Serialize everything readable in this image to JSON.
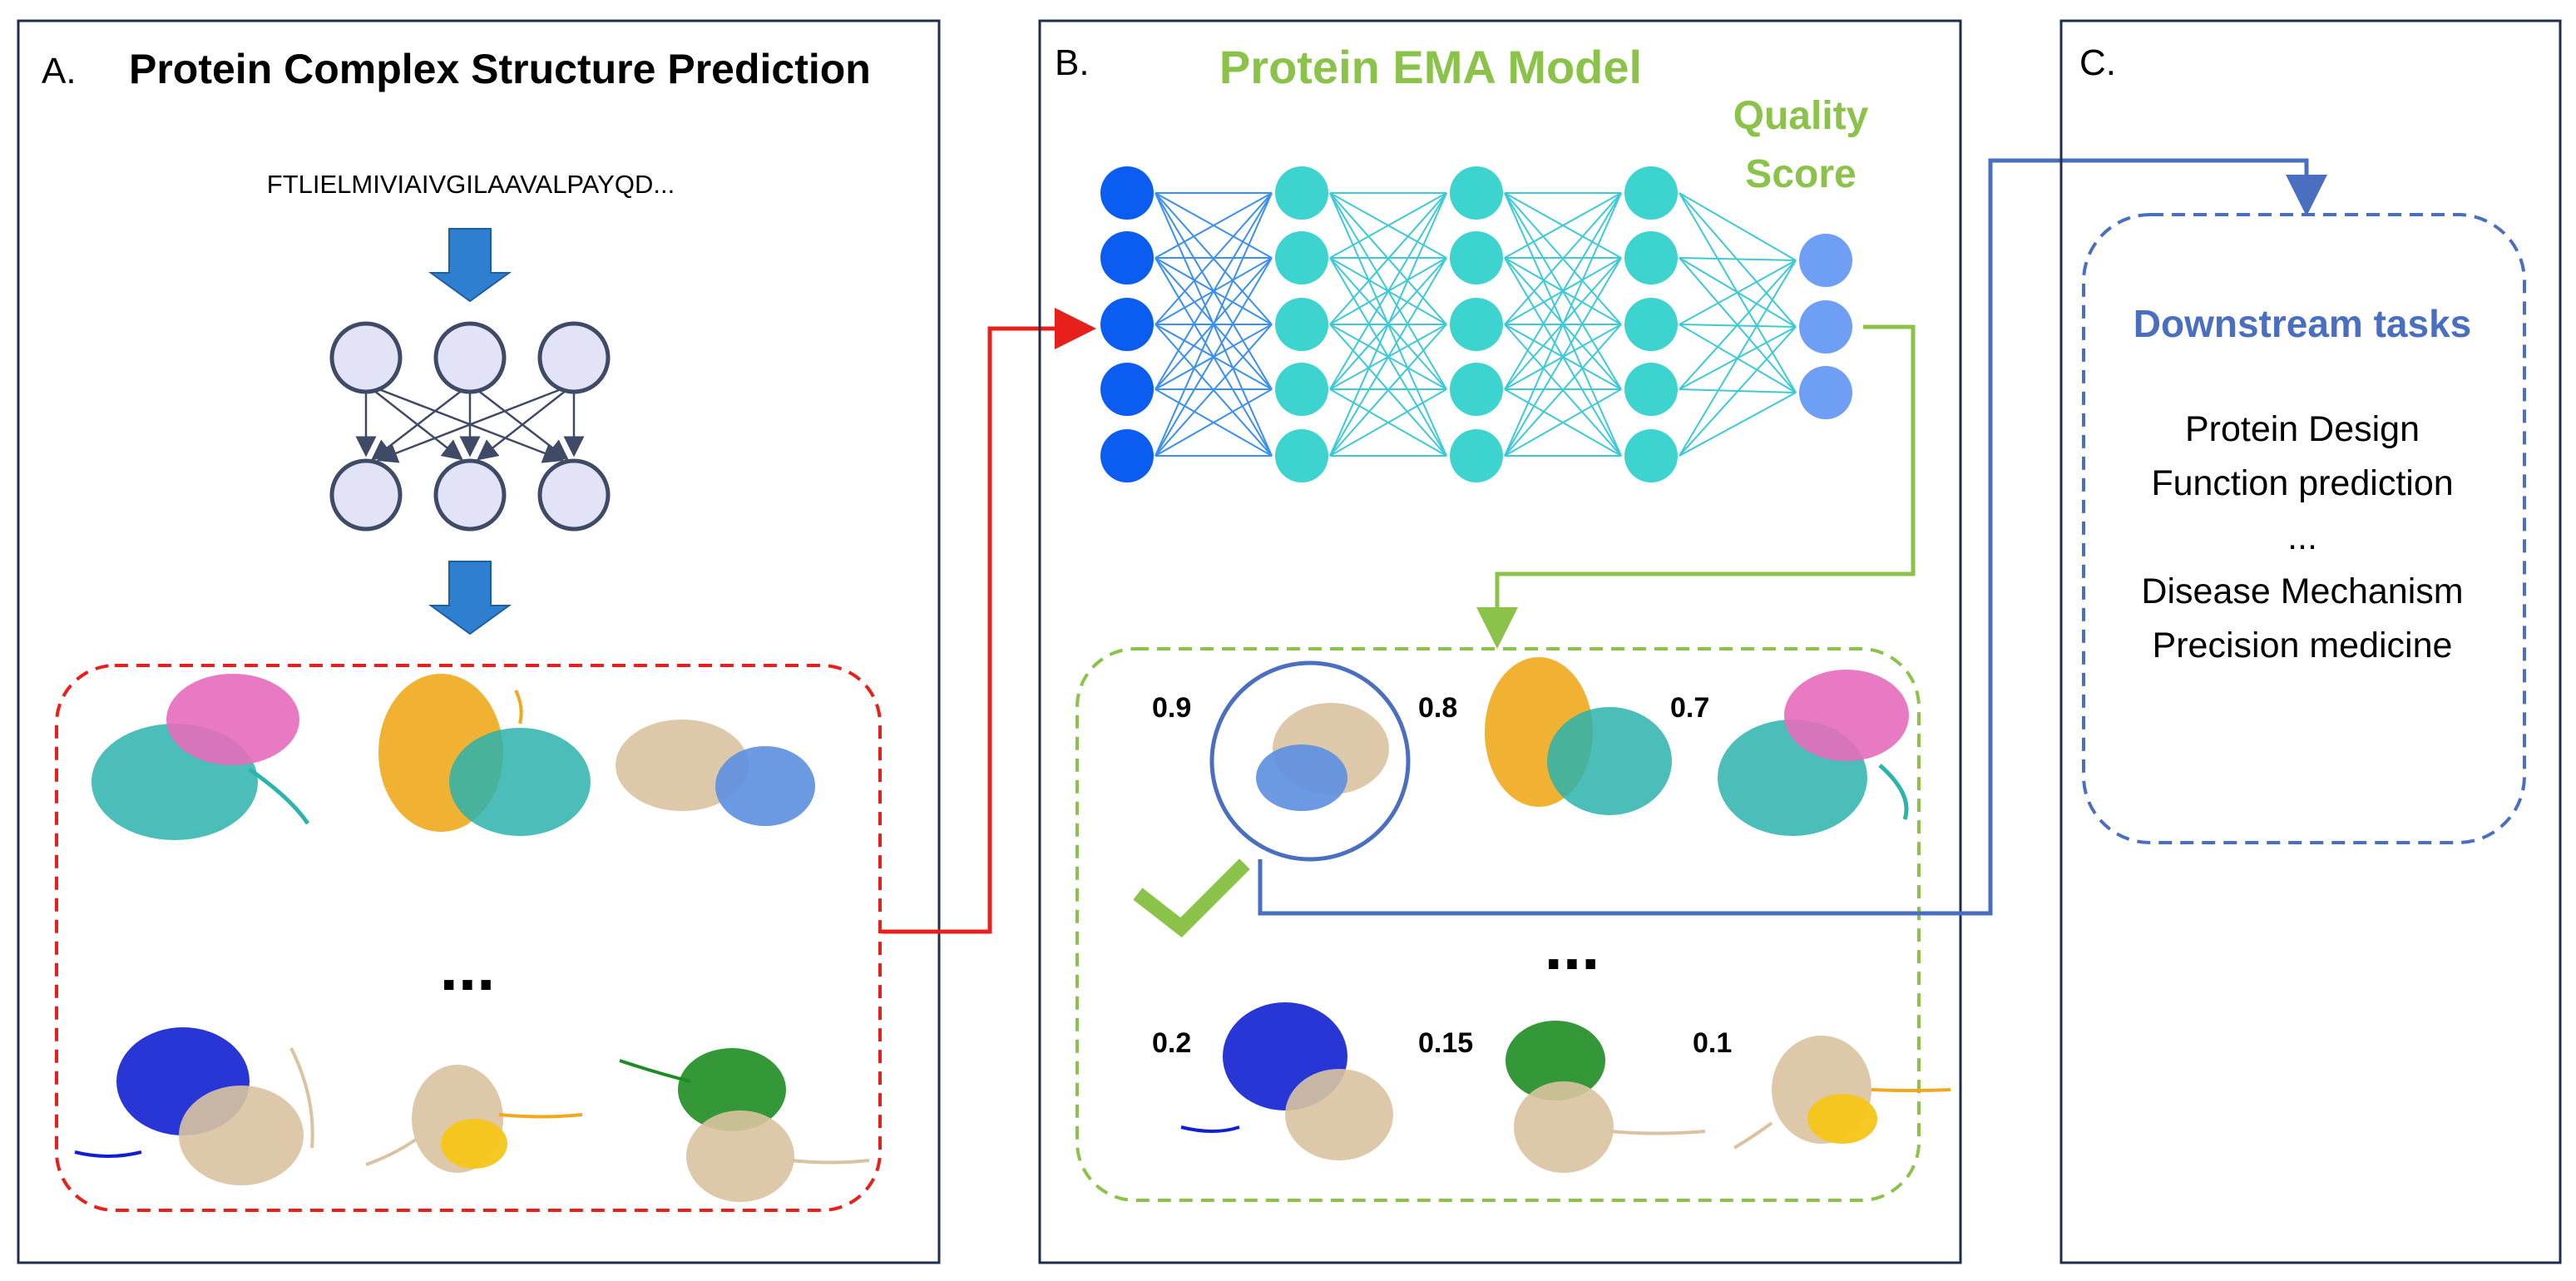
{
  "panel_a": {
    "letter": "A.",
    "title": "Protein Complex Structure Prediction",
    "sequence": "FTLIELMIVIAIVGILAAVALPAYQD...",
    "ellipsis": "..."
  },
  "panel_b": {
    "letter": "B.",
    "title": "Protein EMA Model",
    "quality_line1": "Quality",
    "quality_line2": "Score",
    "scores": [
      "0.9",
      "0.8",
      "0.7",
      "0.2",
      "0.15",
      "0.1"
    ],
    "ellipsis": "..."
  },
  "panel_c": {
    "letter": "C.",
    "title": "Downstream tasks",
    "tasks": [
      "Protein Design",
      "Function prediction",
      "...",
      "Disease Mechanism",
      "Precision medicine"
    ]
  },
  "colors": {
    "frame": "#1f2d4e",
    "red": "#e8201c",
    "green": "#8bc34a",
    "blue": "#4a6fc0",
    "input_node": "#0b5cf0",
    "hidden_node": "#3dd3cf",
    "output_node": "#6f9ff5",
    "small_node_fill": "#e3e3f7",
    "small_node_stroke": "#3f4a66",
    "down_arrow": "#2f7fd0"
  }
}
